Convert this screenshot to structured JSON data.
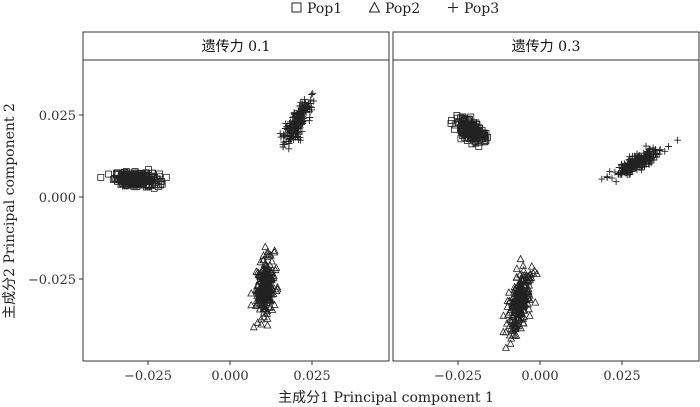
{
  "chart_data": {
    "type": "scatter",
    "xlabel": "主成分1  Principal component 1",
    "ylabel": "主成分2  Principal component 2",
    "x_ticks": [
      -0.025,
      0.0,
      0.025
    ],
    "y_ticks": [
      -0.025,
      0.0,
      0.025
    ],
    "x_tick_labels": [
      "−0.025",
      "0.000",
      "0.025"
    ],
    "y_tick_labels": [
      "−0.025",
      "0.000",
      "0.025"
    ],
    "legend": {
      "position": "top",
      "entries": [
        {
          "name": "Pop1",
          "marker": "square"
        },
        {
          "name": "Pop2",
          "marker": "triangle"
        },
        {
          "name": "Pop3",
          "marker": "plus"
        }
      ]
    },
    "grid": false,
    "panels": [
      {
        "strip": "遗传力 0.1",
        "xlim": [
          -0.0455,
          0.0485
        ],
        "ylim": [
          -0.0505,
          0.0415
        ],
        "clusters": [
          {
            "series": "Pop1",
            "center": [
              -0.029,
              0.005
            ],
            "spread_major": 0.0034,
            "spread_minor": 0.0011,
            "angle_deg": -4,
            "n": 230
          },
          {
            "series": "Pop2",
            "center": [
              0.0105,
              -0.0285
            ],
            "spread_major": 0.0044,
            "spread_minor": 0.0014,
            "angle_deg": 84,
            "n": 230
          },
          {
            "series": "Pop3",
            "center": [
              0.0205,
              0.0225
            ],
            "spread_major": 0.0038,
            "spread_minor": 0.0011,
            "angle_deg": 62,
            "n": 200
          }
        ]
      },
      {
        "strip": "遗传力 0.3",
        "xlim": [
          -0.0455,
          0.0485
        ],
        "ylim": [
          -0.0505,
          0.0415
        ],
        "clusters": [
          {
            "series": "Pop1",
            "center": [
              -0.0215,
              0.02
            ],
            "spread_major": 0.0026,
            "spread_minor": 0.0012,
            "angle_deg": -38,
            "n": 220
          },
          {
            "series": "Pop2",
            "center": [
              -0.0065,
              -0.032
            ],
            "spread_major": 0.005,
            "spread_minor": 0.0014,
            "angle_deg": 78,
            "n": 240
          },
          {
            "series": "Pop3",
            "center": [
              0.0295,
              0.01
            ],
            "spread_major": 0.004,
            "spread_minor": 0.001,
            "angle_deg": 28,
            "n": 220
          }
        ]
      }
    ]
  }
}
